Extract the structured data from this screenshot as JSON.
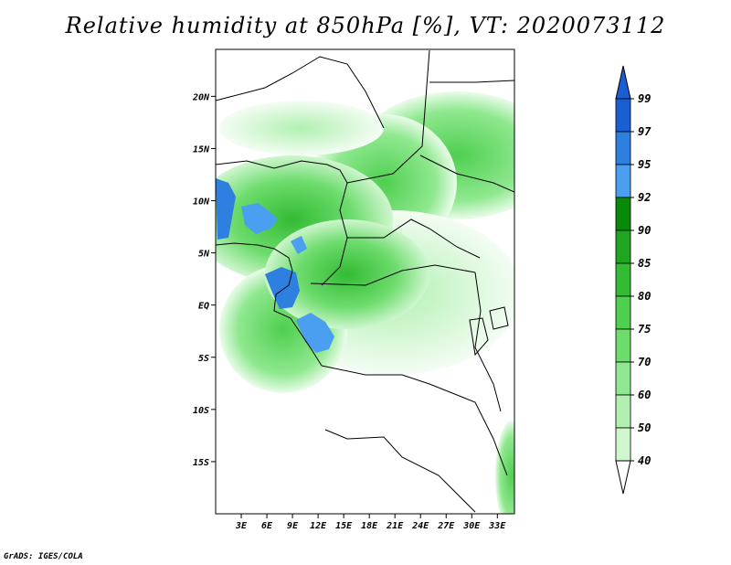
{
  "title": "Relative humidity at 850hPa [%], VT: 2020073112",
  "credit": "GrADS: IGES/COLA",
  "map": {
    "projection": "latlon",
    "lon_range": [
      0,
      35
    ],
    "lat_range": [
      -20,
      25
    ],
    "x_ticks": [
      "3E",
      "6E",
      "9E",
      "12E",
      "15E",
      "18E",
      "21E",
      "24E",
      "27E",
      "30E",
      "33E"
    ],
    "y_ticks": [
      "20N",
      "15N",
      "10N",
      "5N",
      "EQ",
      "5S",
      "10S",
      "15S"
    ]
  },
  "colorbar": {
    "levels": [
      "99",
      "97",
      "95",
      "92",
      "90",
      "85",
      "80",
      "75",
      "70",
      "60",
      "50",
      "40"
    ],
    "colors": [
      "#1a5fd1",
      "#2d7fe0",
      "#4a9ff0",
      "#088a08",
      "#1fa51f",
      "#33bb33",
      "#4fcf4f",
      "#6ddc6d",
      "#8fe88f",
      "#b1f0b1",
      "#cff6cf",
      "#eafcea"
    ],
    "top_color": "#1a5fd1",
    "bottom_color": "#ffffff"
  }
}
